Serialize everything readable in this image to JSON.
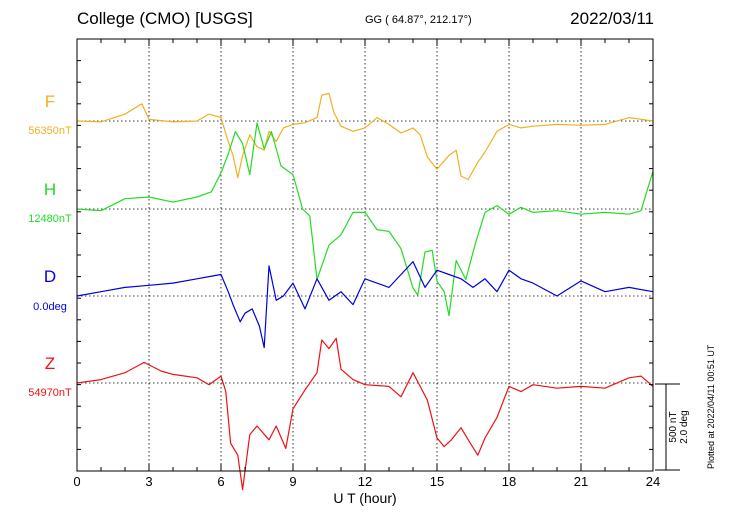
{
  "chart_data": {
    "type": "line",
    "title": "College (CMO)  [USGS]",
    "subtitle": "GG ( 64.87°, 212.17°)",
    "date": "2022/03/11",
    "xlabel": "U T (hour)",
    "xlim": [
      0,
      24
    ],
    "xticks": [
      "0",
      "3",
      "6",
      "9",
      "12",
      "15",
      "18",
      "21",
      "24"
    ],
    "grid": true,
    "scale_label": [
      "500 nT",
      "2.0 deg"
    ],
    "plotted_note": "Plotted at 2022/04/11 00:51 UT",
    "series": [
      {
        "name": "F",
        "baseline": "56350nT",
        "color": "#f0b020",
        "x": [
          0,
          1,
          2,
          2.7,
          3,
          4,
          5,
          5.5,
          6,
          6.3,
          6.5,
          6.7,
          6.9,
          7.2,
          7.5,
          7.8,
          8,
          8.3,
          8.6,
          9,
          9.5,
          10,
          10.2,
          10.5,
          10.7,
          11,
          11.5,
          12,
          12.5,
          13,
          13.5,
          14,
          14.3,
          14.6,
          15,
          15.5,
          15.8,
          16,
          16.3,
          16.7,
          17,
          17.5,
          18,
          18.5,
          19,
          20,
          21,
          22,
          23,
          24
        ],
        "values": [
          0,
          -5,
          40,
          100,
          10,
          -5,
          0,
          40,
          20,
          -120,
          -200,
          -330,
          -200,
          -80,
          -150,
          -170,
          -60,
          -120,
          -40,
          -20,
          -10,
          20,
          150,
          160,
          50,
          -30,
          -60,
          -40,
          20,
          -20,
          -70,
          -40,
          -80,
          -210,
          -280,
          -200,
          -170,
          -320,
          -340,
          -240,
          -180,
          -60,
          -20,
          -40,
          -30,
          -20,
          -25,
          -20,
          20,
          0
        ]
      },
      {
        "name": "H",
        "baseline": "12480nT",
        "color": "#22dd22",
        "x": [
          0,
          1,
          2,
          3,
          4,
          5,
          5.6,
          6,
          6.3,
          6.6,
          6.9,
          7.2,
          7.5,
          7.8,
          8.1,
          8.5,
          9,
          9.4,
          9.7,
          10,
          10.5,
          11,
          11.5,
          12,
          12.5,
          13,
          13.5,
          14,
          14.2,
          14.5,
          14.8,
          15,
          15.3,
          15.5,
          15.8,
          16.2,
          16.6,
          17,
          17.5,
          18,
          18.5,
          19,
          20,
          21,
          22,
          23,
          23.5,
          24
        ],
        "values": [
          0,
          -10,
          60,
          70,
          40,
          70,
          100,
          210,
          320,
          450,
          380,
          200,
          500,
          350,
          450,
          250,
          200,
          0,
          -40,
          -410,
          -210,
          -150,
          -20,
          -20,
          -120,
          -130,
          -230,
          -460,
          -500,
          -250,
          -240,
          -420,
          -480,
          -620,
          -300,
          -410,
          -200,
          -20,
          20,
          -30,
          10,
          -20,
          -10,
          -30,
          -20,
          -30,
          -10,
          220
        ]
      },
      {
        "name": "D",
        "baseline": "0.0deg",
        "color": "#0000dd",
        "x": [
          0,
          1,
          2,
          3,
          4,
          5,
          5.5,
          6,
          6.3,
          6.5,
          6.8,
          7,
          7.3,
          7.6,
          7.8,
          8,
          8.3,
          8.6,
          9,
          9.5,
          10,
          10.5,
          11,
          11.5,
          12,
          13,
          14,
          14.5,
          15,
          15.5,
          16,
          16.5,
          17,
          17.5,
          18,
          18.5,
          19,
          20,
          21,
          22,
          23,
          24
        ],
        "values": [
          0.0,
          0.1,
          0.2,
          0.25,
          0.3,
          0.4,
          0.45,
          0.5,
          0.1,
          -0.2,
          -0.6,
          -0.4,
          -0.3,
          -0.7,
          -1.2,
          0.7,
          -0.1,
          0.0,
          0.3,
          -0.3,
          0.4,
          -0.1,
          0.1,
          -0.2,
          0.4,
          0.2,
          0.8,
          0.2,
          0.6,
          0.5,
          0.4,
          0.2,
          0.4,
          0.1,
          0.6,
          0.4,
          0.3,
          0.0,
          0.35,
          0.1,
          0.2,
          0.1
        ]
      },
      {
        "name": "Z",
        "baseline": "54970nT",
        "color": "#ee1111",
        "x": [
          0,
          1,
          2,
          2.8,
          3.5,
          4,
          5,
          5.5,
          6,
          6.2,
          6.4,
          6.7,
          6.9,
          7.2,
          7.5,
          8,
          8.3,
          8.7,
          9,
          9.5,
          10,
          10.2,
          10.5,
          10.8,
          11,
          11.5,
          12,
          13,
          13.5,
          14,
          14.3,
          14.6,
          15,
          15.3,
          15.6,
          16,
          16.3,
          16.7,
          17,
          17.5,
          18,
          18.5,
          19,
          20,
          21,
          22,
          23,
          23.5,
          24
        ],
        "values": [
          0,
          20,
          60,
          120,
          70,
          50,
          30,
          -10,
          40,
          -50,
          -350,
          -420,
          -620,
          -300,
          -250,
          -330,
          -250,
          -380,
          -150,
          -40,
          60,
          250,
          200,
          260,
          80,
          20,
          -10,
          -20,
          -80,
          60,
          -20,
          -100,
          -320,
          -370,
          -330,
          -260,
          -330,
          -420,
          -320,
          -200,
          -20,
          -50,
          -10,
          -30,
          -20,
          -30,
          30,
          40,
          -20
        ]
      }
    ]
  }
}
